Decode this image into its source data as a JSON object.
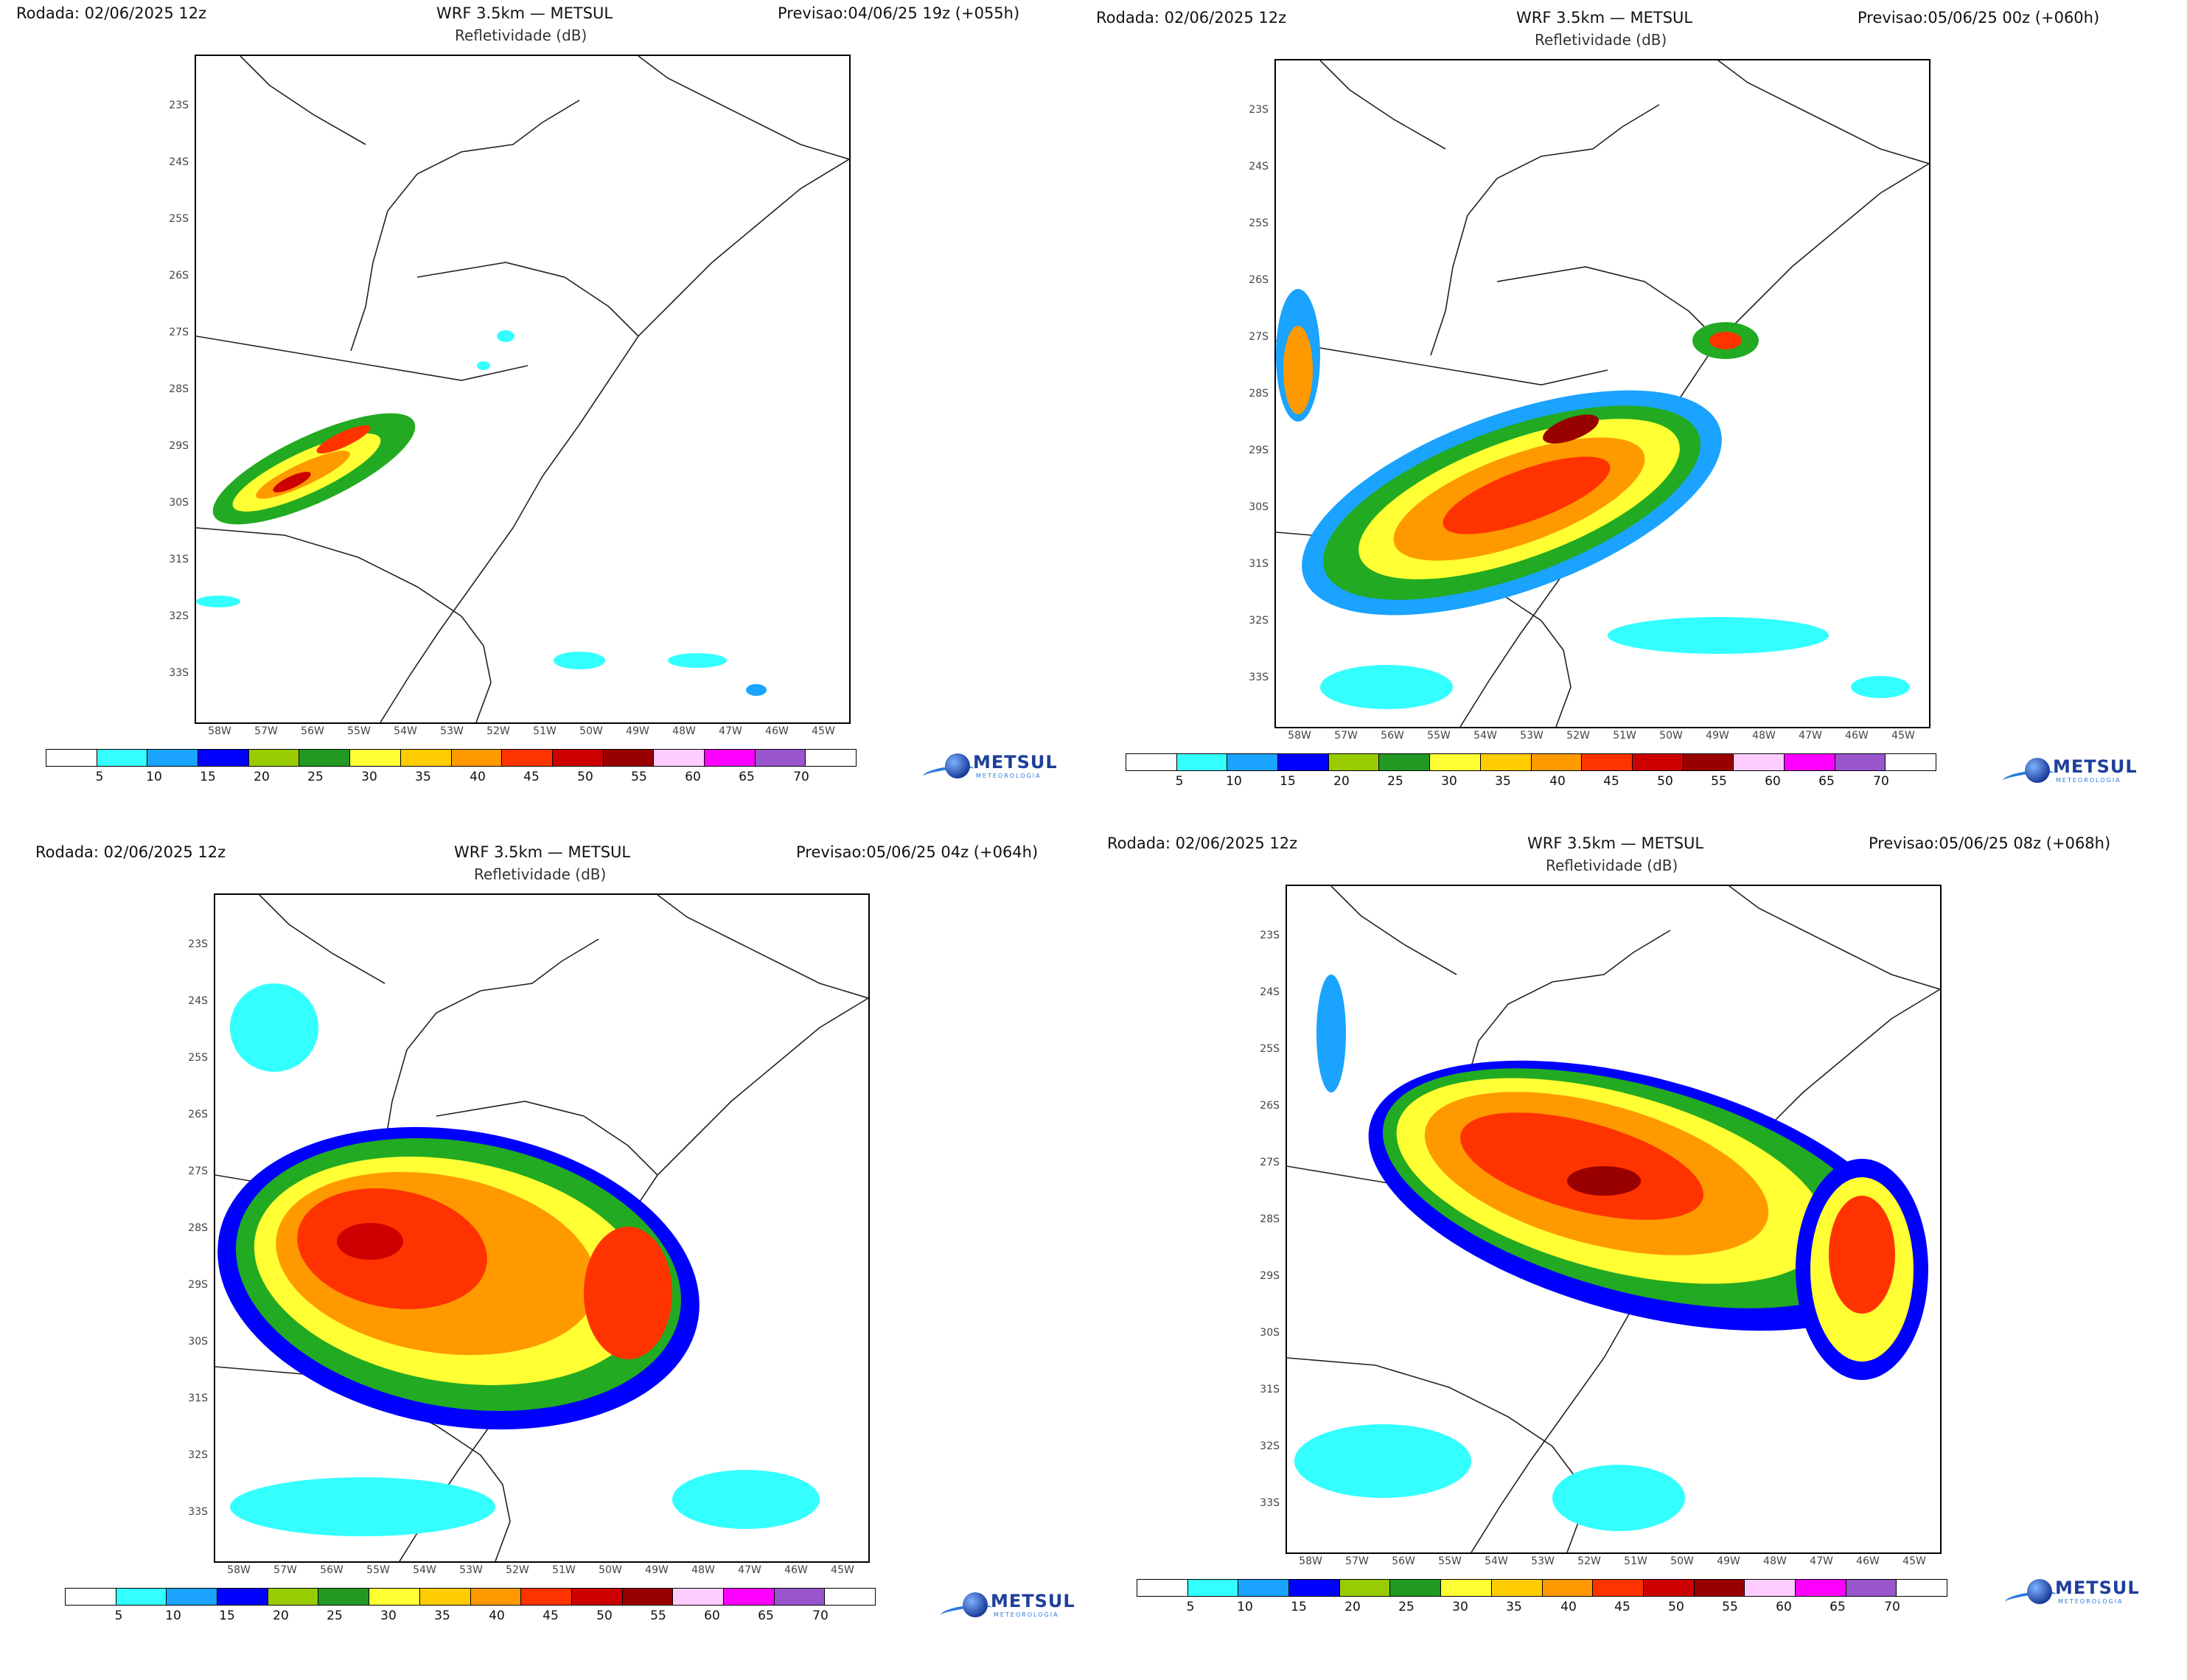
{
  "legend": {
    "labels": [
      "5",
      "10",
      "15",
      "20",
      "25",
      "30",
      "35",
      "40",
      "45",
      "50",
      "55",
      "60",
      "65",
      "70"
    ],
    "colors": [
      "#ffffff",
      "#33ffff",
      "#1aa3ff",
      "#0000ff",
      "#99cc00",
      "#229922",
      "#ffff33",
      "#ffcc00",
      "#ff9900",
      "#ff3300",
      "#cc0000",
      "#990000",
      "#ffccff",
      "#ff00ff",
      "#9955cc",
      "#ffffff"
    ]
  },
  "logo": {
    "name": "METSUL",
    "tag": "METEOROLOGIA"
  },
  "lat_labels": [
    "23S",
    "24S",
    "25S",
    "26S",
    "27S",
    "28S",
    "29S",
    "30S",
    "31S",
    "32S",
    "33S"
  ],
  "lon_labels": [
    "58W",
    "57W",
    "56W",
    "55W",
    "54W",
    "53W",
    "52W",
    "51W",
    "50W",
    "49W",
    "48W",
    "47W",
    "46W",
    "45W"
  ],
  "panels": [
    {
      "run": "Rodada: 02/06/2025 12z",
      "model": "WRF 3.5km — METSUL",
      "field": "Refletividade (dB)",
      "forecast": "Previsao:04/06/25 19z (+055h)"
    },
    {
      "run": "Rodada: 02/06/2025 12z",
      "model": "WRF 3.5km — METSUL",
      "field": "Refletividade (dB)",
      "forecast": "Previsao:05/06/25 00z (+060h)"
    },
    {
      "run": "Rodada: 02/06/2025 12z",
      "model": "WRF 3.5km — METSUL",
      "field": "Refletividade (dB)",
      "forecast": "Previsao:05/06/25 04z (+064h)"
    },
    {
      "run": "Rodada: 02/06/2025 12z",
      "model": "WRF 3.5km — METSUL",
      "field": "Refletividade (dB)",
      "forecast": "Previsao:05/06/25 08z (+068h)"
    }
  ]
}
